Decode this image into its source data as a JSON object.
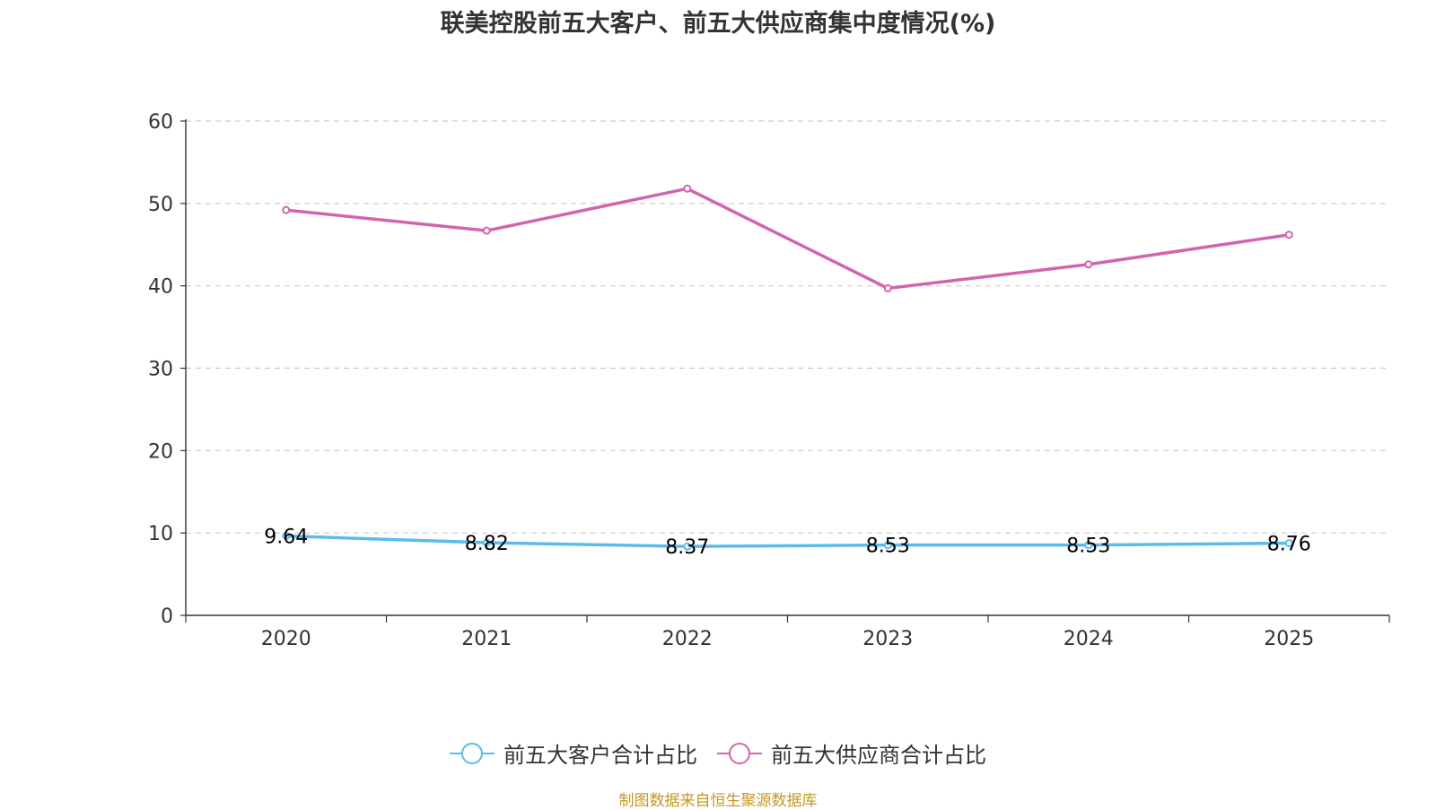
{
  "chart_data": {
    "type": "line",
    "title": "联美控股前五大客户、前五大供应商集中度情况(%)",
    "categories": [
      "2020",
      "2021",
      "2022",
      "2023",
      "2024",
      "2025"
    ],
    "ylim": [
      0,
      60
    ],
    "yticks": [
      0,
      10,
      20,
      30,
      40,
      50,
      60
    ],
    "grid": true,
    "legend_position": "bottom",
    "xlabel": "",
    "ylabel": "",
    "series": [
      {
        "name": "前五大客户合计占比",
        "color": "#5bbcec",
        "values": [
          9.64,
          8.82,
          8.37,
          8.53,
          8.53,
          8.76
        ],
        "labels": [
          "9.64",
          "8.82",
          "8.37",
          "8.53",
          "8.53",
          "8.76"
        ],
        "show_labels": true
      },
      {
        "name": "前五大供应商合计占比",
        "color": "#d264ae",
        "values": [
          49.2,
          46.7,
          51.8,
          39.7,
          42.6,
          46.2
        ],
        "show_labels": false
      }
    ]
  },
  "source_note": "制图数据来自恒生聚源数据库",
  "source_color": "#c8961e"
}
